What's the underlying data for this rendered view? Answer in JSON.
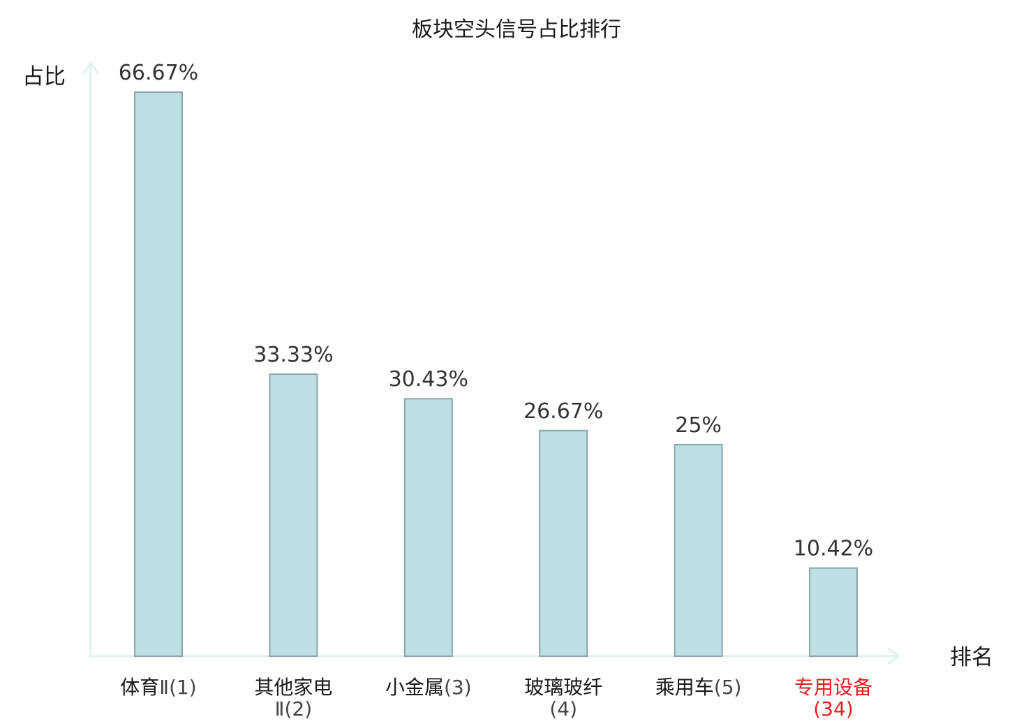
{
  "chart_data": {
    "type": "bar",
    "title": "板块空头信号占比排行",
    "ylabel": "占比",
    "xlabel": "排名",
    "ylim": [
      0,
      70
    ],
    "grid": false,
    "legend": "none",
    "bar_color": "#bde0e3",
    "axis_color": "#dff1ef",
    "highlight_color": "#e02020",
    "categories": [
      {
        "name": "体育Ⅱ",
        "rank": "(1)",
        "highlight": false
      },
      {
        "name": "其他家电Ⅱ",
        "rank": "(2)",
        "highlight": false
      },
      {
        "name": "小金属",
        "rank": "(3)",
        "highlight": false
      },
      {
        "name": "玻璃玻纤",
        "rank": "(4)",
        "highlight": false
      },
      {
        "name": "乘用车",
        "rank": "(5)",
        "highlight": false
      },
      {
        "name": "专用设备",
        "rank": "(34)",
        "highlight": true
      }
    ],
    "values": [
      66.67,
      33.33,
      30.43,
      26.67,
      25,
      10.42
    ],
    "value_labels": [
      "66.67%",
      "33.33%",
      "30.43%",
      "26.67%",
      "25%",
      "10.42%"
    ]
  }
}
